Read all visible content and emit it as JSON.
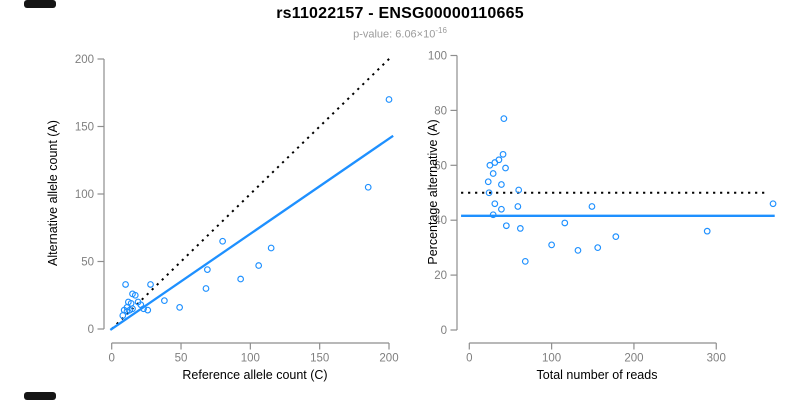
{
  "header": {
    "title": "rs11022157 - ENSG00000110665",
    "subtitle_prefix": "p-value: 6.06×10",
    "subtitle_exponent": "-16"
  },
  "colors": {
    "accent_blue": "#1E90FF",
    "line_black": "#000000",
    "axis_gray": "#8e8e8e",
    "tick_label_gray": "#7f7f7f",
    "subtitle_gray": "#9b9b9b",
    "background": "#ffffff"
  },
  "chart_data": [
    {
      "type": "scatter",
      "name": "allele-counts-scatter",
      "xlabel": "Reference allele count (C)",
      "ylabel": "Alternative allele count (A)",
      "xlim": [
        0,
        200
      ],
      "ylim": [
        0,
        200
      ],
      "xticks": [
        0,
        50,
        100,
        150,
        200
      ],
      "yticks": [
        0,
        50,
        100,
        150,
        200
      ],
      "grid": false,
      "legend": "none",
      "point_color": "#1E90FF",
      "points": [
        [
          8,
          10
        ],
        [
          9,
          14
        ],
        [
          10,
          33
        ],
        [
          11,
          13
        ],
        [
          11,
          16
        ],
        [
          12,
          20
        ],
        [
          13,
          14
        ],
        [
          14,
          19
        ],
        [
          15,
          15
        ],
        [
          15,
          26
        ],
        [
          17,
          25
        ],
        [
          19,
          20
        ],
        [
          21,
          18
        ],
        [
          23,
          15
        ],
        [
          26,
          14
        ],
        [
          28,
          33
        ],
        [
          38,
          21
        ],
        [
          49,
          16
        ],
        [
          68,
          30
        ],
        [
          69,
          44
        ],
        [
          80,
          65
        ],
        [
          93,
          37
        ],
        [
          106,
          47
        ],
        [
          115,
          60
        ],
        [
          185,
          105
        ],
        [
          200,
          170
        ]
      ],
      "lines": [
        {
          "name": "identity-line",
          "style": "dotted",
          "color": "#000000",
          "slope": 1,
          "intercept": 0,
          "x_range": [
            0,
            201
          ]
        },
        {
          "name": "regression-line",
          "style": "solid",
          "color": "#1E90FF",
          "slope": 0.705,
          "intercept": 0,
          "x_range": [
            -1,
            203
          ]
        }
      ]
    },
    {
      "type": "scatter",
      "name": "percentage-vs-reads-scatter",
      "xlabel": "Total number of reads",
      "ylabel": "Percentage alternative (A)",
      "xlim": [
        0,
        300
      ],
      "ylim": [
        0,
        100
      ],
      "xticks": [
        0,
        100,
        200,
        300
      ],
      "yticks": [
        0,
        20,
        40,
        60,
        80,
        100
      ],
      "grid": false,
      "legend": "none",
      "point_color": "#1E90FF",
      "points": [
        [
          23,
          54
        ],
        [
          24,
          50
        ],
        [
          25,
          60
        ],
        [
          29,
          42
        ],
        [
          29,
          57
        ],
        [
          31,
          46
        ],
        [
          31,
          61
        ],
        [
          36,
          62
        ],
        [
          39,
          44
        ],
        [
          39,
          53
        ],
        [
          41,
          64
        ],
        [
          42,
          77
        ],
        [
          44,
          59
        ],
        [
          45,
          38
        ],
        [
          59,
          45
        ],
        [
          60,
          51
        ],
        [
          62,
          37
        ],
        [
          68,
          25
        ],
        [
          100,
          31
        ],
        [
          116,
          39
        ],
        [
          132,
          29
        ],
        [
          149,
          45
        ],
        [
          156,
          30
        ],
        [
          178,
          34
        ],
        [
          289,
          36
        ],
        [
          369,
          46
        ]
      ],
      "lines": [
        {
          "name": "fifty-percent-line",
          "style": "dotted",
          "color": "#000000",
          "slope": 0,
          "intercept": 50,
          "x_range": [
            -10,
            361
          ]
        },
        {
          "name": "mean-percentage-line",
          "style": "solid",
          "color": "#1E90FF",
          "slope": 0,
          "intercept": 41.6,
          "x_range": [
            -10,
            371
          ]
        }
      ]
    }
  ]
}
